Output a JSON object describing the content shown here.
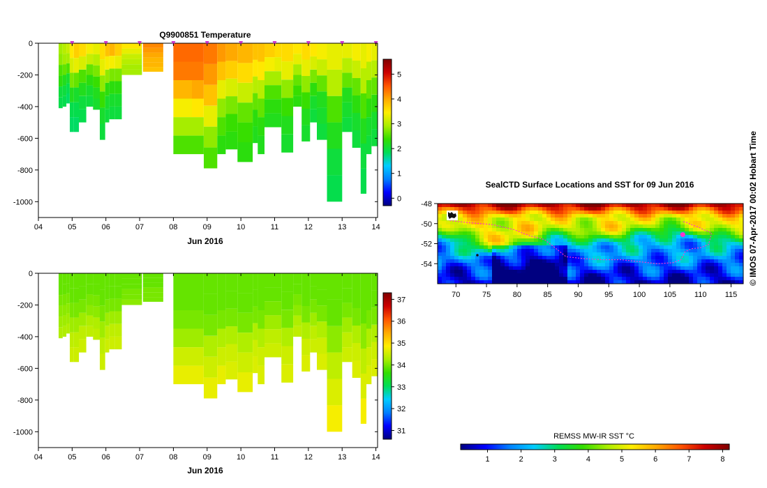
{
  "chart_data": [
    {
      "type": "heatmap",
      "title": "Q9900851  Temperature",
      "xlabel": "Jun 2016",
      "ylabel": "",
      "x_ticks": [
        "04",
        "05",
        "06",
        "07",
        "08",
        "09",
        "10",
        "11",
        "12",
        "13",
        "14"
      ],
      "xlim": [
        4,
        14.05
      ],
      "y_ticks": [
        "0",
        "-200",
        "-400",
        "-600",
        "-800",
        "-1000"
      ],
      "y_tick_values": [
        0,
        -200,
        -400,
        -600,
        -800,
        -1000
      ],
      "ylim": [
        -1100,
        0
      ],
      "colorbar_ticks": [
        "0",
        "1",
        "2",
        "3",
        "4",
        "5"
      ],
      "colorbar_range": [
        -0.3,
        5.6
      ],
      "profile_markers_days": [
        5.0,
        6.0,
        7.0,
        8.0,
        9.0,
        10.0,
        11.0,
        12.0,
        13.0,
        14.0
      ],
      "profiles": [
        {
          "t": 4.6,
          "depth": 410,
          "v": [
            2.9,
            2.8,
            2.5,
            2.3,
            2.0,
            1.9
          ]
        },
        {
          "t": 4.72,
          "depth": 400,
          "v": [
            3.0,
            2.9,
            2.6,
            2.2,
            2.0,
            1.9
          ]
        },
        {
          "t": 4.83,
          "depth": 380,
          "v": [
            3.1,
            2.9,
            2.5,
            2.1,
            1.9,
            1.8
          ]
        },
        {
          "t": 4.93,
          "depth": 560,
          "v": [
            3.5,
            3.2,
            2.7,
            2.2,
            1.9,
            1.8
          ]
        },
        {
          "t": 5.05,
          "depth": 560,
          "v": [
            3.7,
            3.3,
            2.6,
            2.1,
            1.9,
            1.8
          ]
        },
        {
          "t": 5.2,
          "depth": 500,
          "v": [
            3.6,
            3.2,
            2.5,
            2.2,
            2.0,
            1.9
          ]
        },
        {
          "t": 5.42,
          "depth": 400,
          "v": [
            3.4,
            3.1,
            2.6,
            2.3,
            2.1,
            2.0
          ]
        },
        {
          "t": 5.62,
          "depth": 420,
          "v": [
            3.3,
            3.0,
            2.7,
            2.4,
            2.2,
            2.1
          ]
        },
        {
          "t": 5.82,
          "depth": 610,
          "v": [
            3.6,
            3.3,
            2.8,
            2.4,
            2.1,
            2.0
          ]
        },
        {
          "t": 5.98,
          "depth": 500,
          "v": [
            3.8,
            3.4,
            2.8,
            2.3,
            2.1,
            2.0
          ]
        },
        {
          "t": 6.1,
          "depth": 480,
          "v": [
            3.9,
            3.4,
            2.7,
            2.3,
            2.1,
            2.0
          ]
        },
        {
          "t": 6.27,
          "depth": 480,
          "v": [
            3.7,
            3.3,
            2.7,
            2.3,
            2.1,
            2.0
          ]
        },
        {
          "t": 6.47,
          "depth": 200,
          "v": [
            3.5,
            3.3,
            3.1,
            3.0,
            2.9,
            2.9
          ]
        },
        {
          "t": 7.1,
          "depth": 180,
          "v": [
            4.2,
            4.1,
            4.0,
            3.9,
            3.9,
            3.8
          ]
        },
        {
          "t": 8.0,
          "depth": 700,
          "v": [
            4.4,
            4.3,
            3.9,
            3.4,
            2.9,
            2.5
          ]
        },
        {
          "t": 8.55,
          "depth": 700,
          "v": [
            4.4,
            4.3,
            4.0,
            3.5,
            2.9,
            2.5
          ]
        },
        {
          "t": 8.9,
          "depth": 790,
          "v": [
            4.3,
            4.1,
            3.8,
            3.3,
            2.8,
            2.5
          ]
        },
        {
          "t": 9.3,
          "depth": 700,
          "v": [
            4.1,
            3.8,
            3.3,
            2.8,
            2.5,
            2.3
          ]
        },
        {
          "t": 9.55,
          "depth": 670,
          "v": [
            4.0,
            3.7,
            3.2,
            2.7,
            2.4,
            2.3
          ]
        },
        {
          "t": 9.9,
          "depth": 750,
          "v": [
            3.9,
            3.6,
            3.1,
            2.6,
            2.4,
            2.3
          ]
        },
        {
          "t": 10.35,
          "depth": 630,
          "v": [
            3.8,
            3.5,
            3.0,
            2.6,
            2.3,
            2.2
          ]
        },
        {
          "t": 10.5,
          "depth": 700,
          "v": [
            3.8,
            3.5,
            3.0,
            2.6,
            2.3,
            2.2
          ]
        },
        {
          "t": 10.7,
          "depth": 530,
          "v": [
            3.7,
            3.4,
            2.9,
            2.5,
            2.3,
            2.2
          ]
        },
        {
          "t": 11.0,
          "depth": 530,
          "v": [
            3.6,
            3.3,
            2.9,
            2.5,
            2.3,
            2.2
          ]
        },
        {
          "t": 11.2,
          "depth": 690,
          "v": [
            3.6,
            3.3,
            2.8,
            2.4,
            2.2,
            2.1
          ]
        },
        {
          "t": 11.55,
          "depth": 400,
          "v": [
            3.5,
            3.3,
            2.9,
            2.6,
            2.4,
            2.3
          ]
        },
        {
          "t": 11.8,
          "depth": 620,
          "v": [
            3.6,
            3.3,
            2.8,
            2.4,
            2.2,
            2.1
          ]
        },
        {
          "t": 12.05,
          "depth": 500,
          "v": [
            3.5,
            3.2,
            2.7,
            2.3,
            2.1,
            2.0
          ]
        },
        {
          "t": 12.25,
          "depth": 610,
          "v": [
            3.4,
            3.1,
            2.6,
            2.2,
            2.1,
            2.0
          ]
        },
        {
          "t": 12.55,
          "depth": 1000,
          "v": [
            3.3,
            3.0,
            2.5,
            2.2,
            2.0,
            1.9
          ]
        },
        {
          "t": 13.0,
          "depth": 560,
          "v": [
            3.3,
            3.0,
            2.6,
            2.2,
            2.1,
            2.0
          ]
        },
        {
          "t": 13.3,
          "depth": 660,
          "v": [
            3.4,
            3.1,
            2.6,
            2.3,
            2.1,
            2.0
          ]
        },
        {
          "t": 13.55,
          "depth": 950,
          "v": [
            3.3,
            3.0,
            2.5,
            2.2,
            2.0,
            1.9
          ]
        },
        {
          "t": 13.72,
          "depth": 700,
          "v": [
            3.4,
            3.0,
            2.6,
            2.3,
            2.1,
            2.0
          ]
        },
        {
          "t": 13.87,
          "depth": 650,
          "v": [
            3.3,
            3.0,
            2.6,
            2.3,
            2.1,
            2.0
          ]
        }
      ]
    },
    {
      "type": "heatmap",
      "title": "",
      "xlabel": "Jun 2016",
      "ylabel": "",
      "x_ticks": [
        "04",
        "05",
        "06",
        "07",
        "08",
        "09",
        "10",
        "11",
        "12",
        "13",
        "14"
      ],
      "xlim": [
        4,
        14.05
      ],
      "y_ticks": [
        "0",
        "-200",
        "-400",
        "-600",
        "-800",
        "-1000"
      ],
      "y_tick_values": [
        0,
        -200,
        -400,
        -600,
        -800,
        -1000
      ],
      "ylim": [
        -1100,
        0
      ],
      "colorbar_ticks": [
        "31",
        "32",
        "33",
        "34",
        "35",
        "36",
        "37"
      ],
      "colorbar_range": [
        30.6,
        37.3
      ],
      "profiles": [
        {
          "t": 4.6,
          "depth": 410,
          "v": [
            33.9,
            33.9,
            34.0,
            34.1,
            34.2,
            34.3
          ]
        },
        {
          "t": 4.72,
          "depth": 400,
          "v": [
            33.9,
            33.9,
            34.0,
            34.1,
            34.2,
            34.3
          ]
        },
        {
          "t": 4.83,
          "depth": 380,
          "v": [
            33.9,
            33.9,
            34.0,
            34.1,
            34.2,
            34.3
          ]
        },
        {
          "t": 4.93,
          "depth": 560,
          "v": [
            33.9,
            33.9,
            34.0,
            34.2,
            34.4,
            34.5
          ]
        },
        {
          "t": 5.05,
          "depth": 560,
          "v": [
            33.9,
            33.9,
            34.0,
            34.2,
            34.4,
            34.5
          ]
        },
        {
          "t": 5.2,
          "depth": 500,
          "v": [
            33.9,
            33.9,
            34.0,
            34.2,
            34.4,
            34.5
          ]
        },
        {
          "t": 5.42,
          "depth": 400,
          "v": [
            33.9,
            33.9,
            34.0,
            34.1,
            34.3,
            34.4
          ]
        },
        {
          "t": 5.62,
          "depth": 420,
          "v": [
            33.9,
            33.9,
            34.0,
            34.1,
            34.3,
            34.4
          ]
        },
        {
          "t": 5.82,
          "depth": 610,
          "v": [
            33.9,
            33.9,
            34.0,
            34.2,
            34.4,
            34.5
          ]
        },
        {
          "t": 5.98,
          "depth": 500,
          "v": [
            33.9,
            33.9,
            34.0,
            34.2,
            34.4,
            34.5
          ]
        },
        {
          "t": 6.1,
          "depth": 480,
          "v": [
            33.9,
            33.9,
            34.0,
            34.2,
            34.4,
            34.5
          ]
        },
        {
          "t": 6.27,
          "depth": 480,
          "v": [
            33.9,
            33.9,
            34.0,
            34.2,
            34.4,
            34.5
          ]
        },
        {
          "t": 6.47,
          "depth": 200,
          "v": [
            33.9,
            33.9,
            33.9,
            34.0,
            34.0,
            34.1
          ]
        },
        {
          "t": 7.1,
          "depth": 180,
          "v": [
            33.9,
            33.9,
            33.9,
            34.0,
            34.0,
            34.0
          ]
        },
        {
          "t": 8.0,
          "depth": 700,
          "v": [
            33.9,
            33.9,
            34.0,
            34.2,
            34.5,
            34.7
          ]
        },
        {
          "t": 8.55,
          "depth": 700,
          "v": [
            33.9,
            33.9,
            34.0,
            34.2,
            34.5,
            34.7
          ]
        },
        {
          "t": 8.9,
          "depth": 790,
          "v": [
            33.9,
            33.9,
            34.0,
            34.3,
            34.5,
            34.7
          ]
        },
        {
          "t": 9.3,
          "depth": 700,
          "v": [
            33.9,
            33.9,
            34.0,
            34.3,
            34.5,
            34.7
          ]
        },
        {
          "t": 9.55,
          "depth": 670,
          "v": [
            33.9,
            33.9,
            34.0,
            34.3,
            34.5,
            34.6
          ]
        },
        {
          "t": 9.9,
          "depth": 750,
          "v": [
            33.9,
            33.9,
            34.0,
            34.3,
            34.5,
            34.7
          ]
        },
        {
          "t": 10.35,
          "depth": 630,
          "v": [
            33.9,
            33.9,
            34.0,
            34.3,
            34.5,
            34.6
          ]
        },
        {
          "t": 10.5,
          "depth": 700,
          "v": [
            33.9,
            33.9,
            34.0,
            34.3,
            34.5,
            34.6
          ]
        },
        {
          "t": 10.7,
          "depth": 530,
          "v": [
            33.9,
            33.9,
            34.0,
            34.2,
            34.4,
            34.5
          ]
        },
        {
          "t": 11.0,
          "depth": 530,
          "v": [
            33.9,
            33.9,
            34.0,
            34.2,
            34.4,
            34.5
          ]
        },
        {
          "t": 11.2,
          "depth": 690,
          "v": [
            33.9,
            33.9,
            34.0,
            34.3,
            34.5,
            34.6
          ]
        },
        {
          "t": 11.55,
          "depth": 400,
          "v": [
            33.9,
            33.9,
            34.0,
            34.1,
            34.3,
            34.4
          ]
        },
        {
          "t": 11.8,
          "depth": 620,
          "v": [
            33.9,
            33.9,
            34.0,
            34.3,
            34.5,
            34.6
          ]
        },
        {
          "t": 12.05,
          "depth": 500,
          "v": [
            33.9,
            33.9,
            34.0,
            34.2,
            34.4,
            34.5
          ]
        },
        {
          "t": 12.25,
          "depth": 610,
          "v": [
            33.9,
            33.9,
            34.0,
            34.3,
            34.5,
            34.6
          ]
        },
        {
          "t": 12.55,
          "depth": 1000,
          "v": [
            33.9,
            33.9,
            34.1,
            34.4,
            34.6,
            34.8
          ]
        },
        {
          "t": 13.0,
          "depth": 560,
          "v": [
            33.9,
            33.9,
            34.0,
            34.2,
            34.4,
            34.5
          ]
        },
        {
          "t": 13.3,
          "depth": 660,
          "v": [
            33.9,
            33.9,
            34.0,
            34.3,
            34.5,
            34.6
          ]
        },
        {
          "t": 13.55,
          "depth": 950,
          "v": [
            33.9,
            33.9,
            34.1,
            34.4,
            34.6,
            34.8
          ]
        },
        {
          "t": 13.72,
          "depth": 700,
          "v": [
            33.9,
            33.9,
            34.0,
            34.3,
            34.5,
            34.6
          ]
        },
        {
          "t": 13.87,
          "depth": 650,
          "v": [
            33.9,
            33.9,
            34.0,
            34.3,
            34.5,
            34.6
          ]
        }
      ]
    },
    {
      "type": "heatmap",
      "title": "SealCTD Surface Locations and SST for 09 Jun 2016",
      "xlabel": "",
      "ylabel": "",
      "x_ticks": [
        "70",
        "75",
        "80",
        "85",
        "90",
        "95",
        "100",
        "105",
        "110",
        "115"
      ],
      "xlim": [
        67,
        117
      ],
      "y_ticks": [
        "-48",
        "-50",
        "-52",
        "-54"
      ],
      "ylim": [
        -56,
        -48
      ],
      "colorbar_label": "REMSS MW-IR SST °C",
      "colorbar_ticks": [
        "1",
        "2",
        "3",
        "4",
        "5",
        "6",
        "7",
        "8"
      ],
      "colorbar_range": [
        0.2,
        8.2
      ],
      "colorbar_orientation": "horizontal",
      "track_color": "#ff33cc",
      "track_lon_lat": [
        [
          107.2,
          -49.8
        ],
        [
          107.8,
          -49.9
        ],
        [
          108.5,
          -50.1
        ],
        [
          109.5,
          -50.3
        ],
        [
          110.5,
          -50.6
        ],
        [
          111.8,
          -50.9
        ],
        [
          111.6,
          -51.5
        ],
        [
          111.3,
          -52.1
        ],
        [
          110.0,
          -52.4
        ],
        [
          108.6,
          -52.5
        ],
        [
          107.5,
          -52.8
        ],
        [
          106.8,
          -53.6
        ],
        [
          105.5,
          -53.9
        ],
        [
          103.0,
          -54.0
        ],
        [
          100.0,
          -53.8
        ],
        [
          97.0,
          -53.6
        ],
        [
          94.0,
          -53.6
        ],
        [
          91.0,
          -53.5
        ],
        [
          88.0,
          -53.3
        ],
        [
          86.0,
          -52.3
        ],
        [
          84.5,
          -51.6
        ],
        [
          82.0,
          -51.2
        ],
        [
          79.5,
          -50.6
        ],
        [
          76.0,
          -50.1
        ],
        [
          72.0,
          -49.9
        ],
        [
          69.0,
          -49.7
        ]
      ],
      "current_location_lon_lat": [
        107.1,
        -51.1
      ]
    }
  ],
  "timestamp_note": "© IMOS 07-Apr-2017 00:02 Hobart Time",
  "colors": {
    "jet": [
      "#000080",
      "#0000ff",
      "#0080ff",
      "#00ccff",
      "#00dd55",
      "#33dd00",
      "#aaee00",
      "#ffee00",
      "#ffaa00",
      "#ff5500",
      "#cc0000",
      "#800000"
    ]
  }
}
